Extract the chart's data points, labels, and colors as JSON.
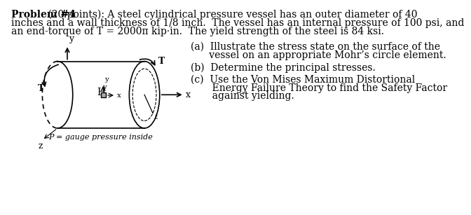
{
  "title_bold": "Problem #4",
  "title_normal": " (20 points): A steel cylindrical pressure vessel has an outer diameter of 40",
  "line2": "inches and a wall thickness of 1/8 inch.  The vessel has an internal pressure of 100 psi, and",
  "line3": "an end-torque of T = 2000π kip·in.  The yield strength of the steel is 84 ksi.",
  "qa1": "(a)  Illustrate the stress state on the surface of the",
  "qa2": "      vessel on an appropriate Mohr’s circle element.",
  "qb": "(b)  Determine the principal stresses.",
  "qc1": "(c)  Use the Von Mises Maximum Distortional",
  "qc2": "       Energy Failure Theory to find the Safety Factor",
  "qc3": "       against yielding.",
  "caption": "P = gauge pressure inside",
  "bg_color": "#ffffff",
  "text_color": "#000000",
  "font_size": 10.0,
  "small_font": 8.0
}
